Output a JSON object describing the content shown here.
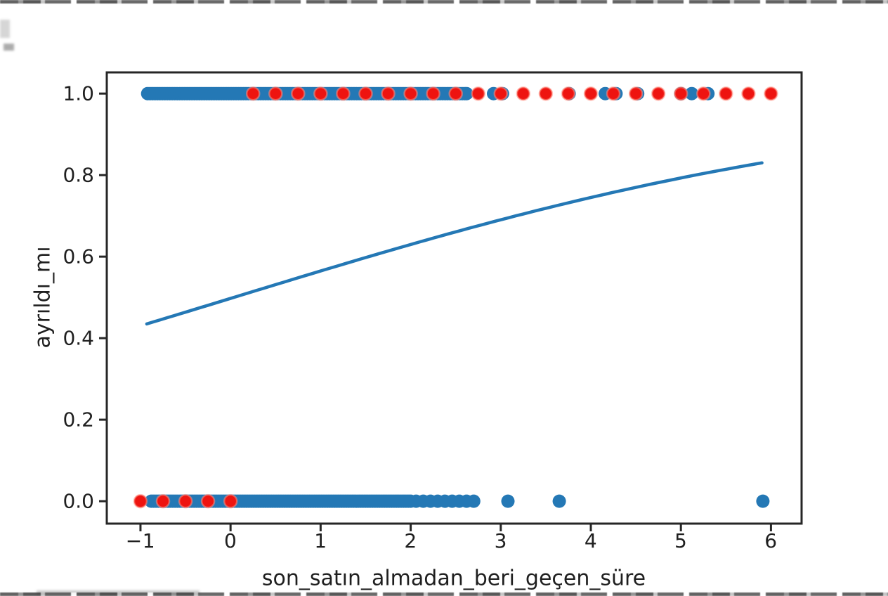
{
  "chart_data": {
    "type": "scatter",
    "title": "",
    "xlabel": "son_satın_almadan_beri_geçen_süre",
    "ylabel": "ayrıldı_mı",
    "xlim": [
      -1.374,
      6.34
    ],
    "ylim": [
      -0.055,
      1.052
    ],
    "grid": false,
    "legend": null,
    "xticks": [
      {
        "value": -1,
        "label": "−1"
      },
      {
        "value": 0,
        "label": "0"
      },
      {
        "value": 1,
        "label": "1"
      },
      {
        "value": 2,
        "label": "2"
      },
      {
        "value": 3,
        "label": "3"
      },
      {
        "value": 4,
        "label": "4"
      },
      {
        "value": 5,
        "label": "5"
      },
      {
        "value": 6,
        "label": "6"
      }
    ],
    "yticks": [
      {
        "value": 0.0,
        "label": "0.0"
      },
      {
        "value": 0.2,
        "label": "0.2"
      },
      {
        "value": 0.4,
        "label": "0.4"
      },
      {
        "value": 0.6,
        "label": "0.6"
      },
      {
        "value": 0.8,
        "label": "0.8"
      },
      {
        "value": 1.0,
        "label": "1.0"
      }
    ],
    "colors": {
      "blue": "#2478b5",
      "red": "#ee1410",
      "red_halo": "rgba(255,140,125,0.55)",
      "axis": "#262626",
      "text": "#1f1f1f"
    },
    "series": [
      {
        "name": "blue-points-class1",
        "y": 1.0,
        "color": "#2478b5",
        "marker_radius": 9.5,
        "x_dense_range": [
          -0.92,
          2.6
        ],
        "x_dense_count": 130,
        "x_extra": [
          2.62,
          2.92,
          3.02,
          3.76,
          4.16,
          4.28,
          4.52,
          5.0,
          5.12,
          5.3
        ]
      },
      {
        "name": "blue-points-class0",
        "y": 0.0,
        "color": "#2478b5",
        "marker_radius": 9.5,
        "x_dense_range": [
          -0.88,
          2.0
        ],
        "x_dense_count": 110,
        "x_extra": [
          2.06,
          2.14,
          2.22,
          2.3,
          2.38,
          2.46,
          2.54,
          2.62,
          2.7,
          3.08,
          3.65,
          5.91
        ]
      },
      {
        "name": "red-points-class1",
        "y": 1.0,
        "color": "#ee1410",
        "halo_color": "rgba(255,140,125,0.55)",
        "marker_radius": 9,
        "x": [
          0.25,
          0.5,
          0.75,
          1.0,
          1.25,
          1.5,
          1.75,
          2.0,
          2.25,
          2.5,
          2.75,
          3.0,
          3.25,
          3.5,
          3.75,
          4.0,
          4.25,
          4.5,
          4.75,
          5.0,
          5.25,
          5.5,
          5.75,
          6.0
        ]
      },
      {
        "name": "red-points-class0",
        "y": 0.0,
        "color": "#ee1410",
        "halo_color": "rgba(255,140,125,0.55)",
        "marker_radius": 9,
        "x": [
          -1.0,
          -0.75,
          -0.5,
          -0.25,
          0.0
        ]
      }
    ],
    "curve": {
      "name": "logistic-fit-curve",
      "model": "sigmoid",
      "intercept": -0.01,
      "slope": 0.2706,
      "x_start": -0.93,
      "x_end": 5.9,
      "color": "#2478b5",
      "line_width": 4.5,
      "sample_points": [
        [
          -0.93,
          0.435
        ],
        [
          0.0,
          0.5
        ],
        [
          1.0,
          0.565
        ],
        [
          2.0,
          0.63
        ],
        [
          3.0,
          0.695
        ],
        [
          4.0,
          0.75
        ],
        [
          5.0,
          0.795
        ],
        [
          5.9,
          0.83
        ]
      ]
    }
  }
}
